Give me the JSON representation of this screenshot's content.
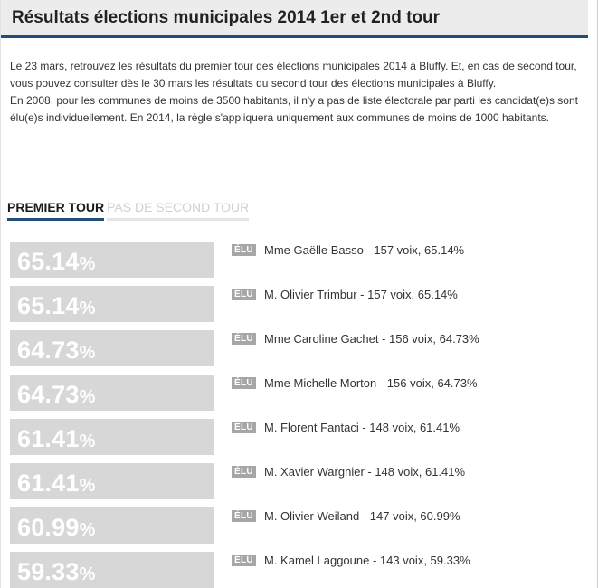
{
  "title": "Résultats élections municipales 2014 1er et 2nd tour",
  "intro": {
    "p1": "Le 23 mars, retrouvez les résultats du premier tour des élections municipales 2014 à Bluffy. Et, en cas de second tour, vous pouvez consulter dès le 30 mars les résultats du second tour des élections municipales à Bluffy.",
    "p2": "En 2008, pour les communes de moins de 3500 habitants, il n'y a pas de liste électorale par parti les candidat(e)s sont élu(e)s individuellement. En 2014, la règle s'appliquera uniquement aux communes de moins de 1000 habitants."
  },
  "tabs": {
    "active": "PREMIER TOUR",
    "inactive": "PAS DE SECOND TOUR"
  },
  "elu_label": "ÉLU",
  "results": [
    {
      "pct": "65.14",
      "pct_sign": "%",
      "candidate": "Mme Gaëlle Basso - 157 voix, 65.14%"
    },
    {
      "pct": "65.14",
      "pct_sign": "%",
      "candidate": "M. Olivier Trimbur - 157 voix, 65.14%"
    },
    {
      "pct": "64.73",
      "pct_sign": "%",
      "candidate": "Mme Caroline Gachet - 156 voix, 64.73%"
    },
    {
      "pct": "64.73",
      "pct_sign": "%",
      "candidate": "Mme Michelle Morton - 156 voix, 64.73%"
    },
    {
      "pct": "61.41",
      "pct_sign": "%",
      "candidate": "M. Florent Fantaci - 148 voix, 61.41%"
    },
    {
      "pct": "61.41",
      "pct_sign": "%",
      "candidate": "M. Xavier Wargnier - 148 voix, 61.41%"
    },
    {
      "pct": "60.99",
      "pct_sign": "%",
      "candidate": "M. Olivier Weiland - 147 voix, 60.99%"
    },
    {
      "pct": "59.33",
      "pct_sign": "%",
      "candidate": "M. Kamel Laggoune - 143 voix, 59.33%"
    }
  ],
  "colors": {
    "accent": "#1f4e79",
    "pct_box": "#d7d7d7",
    "elu_badge": "#a6a6a6"
  }
}
